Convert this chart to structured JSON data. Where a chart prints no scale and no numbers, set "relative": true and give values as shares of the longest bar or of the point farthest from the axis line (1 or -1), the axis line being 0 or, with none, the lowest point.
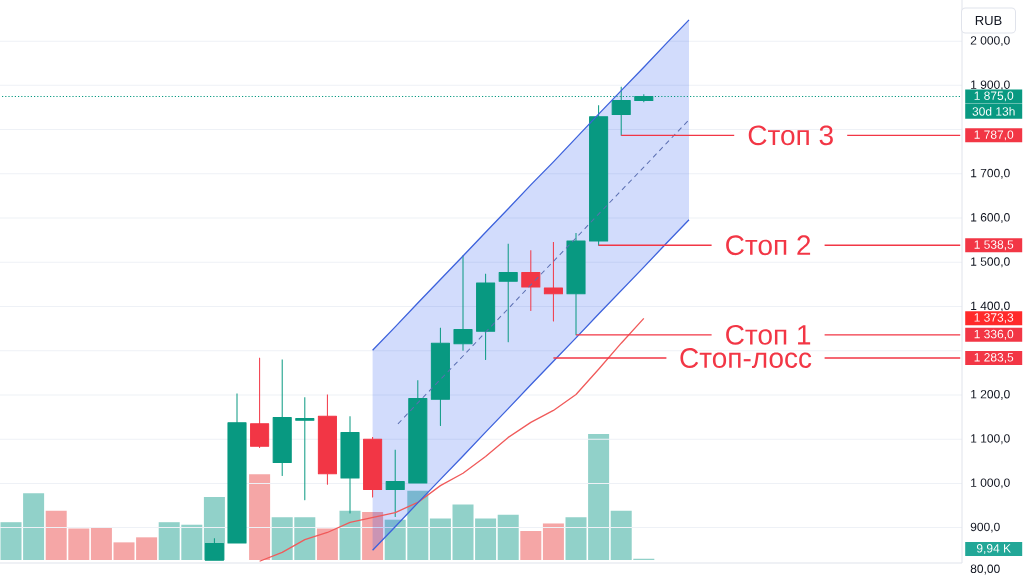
{
  "chart_data": [
    {
      "type": "candlestick",
      "categories": [
        null,
        null,
        null,
        null,
        null,
        null,
        null,
        null,
        null,
        null,
        null,
        null,
        null,
        null,
        null,
        null,
        null,
        null,
        null,
        null,
        null,
        null,
        null,
        null,
        null,
        null,
        null,
        null,
        null,
        null,
        null,
        null,
        null,
        null,
        null,
        null,
        null,
        null,
        null,
        null,
        null,
        null,
        null
      ],
      "ohlc": [
        null,
        null,
        null,
        null,
        null,
        null,
        null,
        null,
        null,
        [
          826,
          876,
          826,
          864
        ],
        [
          865,
          1203,
          865,
          1137
        ],
        [
          1135,
          1284,
          1081,
          1084
        ],
        [
          1047,
          1280,
          1018,
          1149
        ],
        [
          1143,
          1195,
          963,
          1147
        ],
        [
          1152,
          1201,
          998,
          1022
        ],
        [
          1012,
          1152,
          933,
          1115
        ],
        [
          1100,
          1105,
          969,
          986
        ],
        [
          986,
          1076,
          925,
          1004
        ],
        [
          1001,
          1233,
          1001,
          1192
        ],
        [
          1190,
          1352,
          1131,
          1317
        ],
        [
          1316,
          1516,
          1301,
          1348
        ],
        [
          1344,
          1474,
          1280,
          1453
        ],
        [
          1457,
          1542,
          1320,
          1477
        ],
        [
          1477,
          1527,
          1391,
          1444
        ],
        [
          1442,
          1546,
          1367,
          1429
        ],
        [
          1429,
          1566,
          1336,
          1548
        ],
        [
          1548,
          1855,
          1538.5,
          1829
        ],
        [
          1834,
          1897,
          1787,
          1866
        ],
        [
          1866,
          1880,
          1863,
          1875
        ],
        null,
        null,
        null,
        null,
        null,
        null,
        null,
        null,
        null,
        null,
        null,
        null,
        null,
        null
      ],
      "colors": [
        null,
        null,
        null,
        null,
        null,
        null,
        null,
        null,
        null,
        "#089981",
        "#089981",
        "#f23645",
        "#089981",
        "#089981",
        "#f23645",
        "#089981",
        "#f23645",
        "#089981",
        "#089981",
        "#089981",
        "#089981",
        "#089981",
        "#089981",
        "#f23645",
        "#f23645",
        "#089981",
        "#089981",
        "#089981",
        "#089981",
        null,
        null,
        null,
        null,
        null,
        null,
        null,
        null,
        null,
        null,
        null,
        null,
        null,
        null
      ],
      "ylim": [
        820,
        2093
      ],
      "yticks": [
        {
          "value": 900,
          "label": "900,0"
        },
        {
          "value": 1000,
          "label": "1 000,0"
        },
        {
          "value": 1100,
          "label": "1 100,0"
        },
        {
          "value": 1200,
          "label": "1 200,0"
        },
        {
          "value": 1300,
          "label": null
        },
        {
          "value": 1400,
          "label": "1 400,0"
        },
        {
          "value": 1500,
          "label": "1 500,0"
        },
        {
          "value": 1600,
          "label": "1 600,0"
        },
        {
          "value": 1700,
          "label": "1 700,0"
        },
        {
          "value": 1800,
          "label": null
        },
        {
          "value": 1900,
          "label": "1 900,0"
        },
        {
          "value": 2000,
          "label": "2 000,0"
        }
      ],
      "grid": "y",
      "series": [
        {
          "type": "line",
          "color": "#f05a5a",
          "values": [
            null,
            null,
            null,
            null,
            null,
            null,
            null,
            null,
            null,
            null,
            null,
            824,
            844,
            873,
            889,
            912,
            923,
            934,
            957,
            995,
            1023,
            1061,
            1104,
            1138,
            1165,
            1201,
            1258,
            1317,
            1373,
            null,
            null,
            null,
            null,
            null,
            null,
            null,
            null,
            null,
            null,
            null,
            null,
            null,
            null
          ]
        },
        {
          "type": "line",
          "color": "#5b6fb2",
          "line_style": "dashed",
          "values": [
            null,
            null,
            null,
            null,
            null,
            null,
            null,
            null,
            null,
            null,
            null,
            null,
            null,
            null,
            null,
            null,
            null,
            1128,
            1182,
            1235,
            1288,
            1342,
            1395,
            1449,
            1502,
            1555,
            1609,
            1662,
            1715,
            1769,
            1822,
            null,
            null,
            null,
            null,
            null,
            null,
            null,
            null,
            null,
            null,
            null,
            null
          ],
          "lower": [
            null,
            null,
            null,
            null,
            null,
            null,
            null,
            null,
            null,
            null,
            null,
            null,
            null,
            null,
            null,
            null,
            849,
            902,
            956,
            1009,
            1062,
            1116,
            1169,
            1223,
            1276,
            1329,
            1383,
            1436,
            1489,
            1543,
            1596,
            null,
            null,
            null,
            null,
            null,
            null,
            null,
            null,
            null,
            null,
            null,
            null
          ],
          "upper": [
            null,
            null,
            null,
            null,
            null,
            null,
            null,
            null,
            null,
            null,
            null,
            null,
            null,
            null,
            null,
            null,
            1301,
            1354,
            1408,
            1461,
            1514,
            1568,
            1621,
            1675,
            1727,
            1781,
            1835,
            1888,
            1941,
            1995,
            2048,
            null,
            null,
            null,
            null,
            null,
            null,
            null,
            null,
            null,
            null,
            null,
            null
          ]
        },
        {
          "type": "line",
          "color": "#3d62dc",
          "values": [
            null,
            null,
            null,
            null,
            null,
            null,
            null,
            null,
            null,
            null,
            null,
            null,
            null,
            null,
            null,
            null,
            1301,
            1354,
            1408,
            1461,
            1514,
            1568,
            1621,
            1675,
            1727,
            1781,
            1835,
            1888,
            1941,
            1995,
            2048,
            null,
            null,
            null,
            null,
            null,
            null,
            null,
            null,
            null,
            null,
            null,
            null
          ]
        },
        {
          "type": "line",
          "color": "#3d62dc",
          "values": [
            null,
            null,
            null,
            null,
            null,
            null,
            null,
            null,
            null,
            null,
            null,
            null,
            null,
            null,
            null,
            null,
            849,
            902,
            956,
            1009,
            1062,
            1116,
            1169,
            1223,
            1276,
            1329,
            1383,
            1436,
            1489,
            1543,
            1596,
            null,
            null,
            null,
            null,
            null,
            null,
            null,
            null,
            null,
            null,
            null,
            null
          ]
        },
        {
          "type": "line",
          "name": "Стоп 3",
          "color": "#f23645",
          "values": [
            null,
            null,
            null,
            null,
            null,
            null,
            null,
            null,
            null,
            null,
            null,
            null,
            null,
            null,
            null,
            null,
            null,
            null,
            null,
            null,
            null,
            null,
            null,
            null,
            null,
            null,
            null,
            1787,
            1787,
            1787,
            1787,
            1787,
            1787,
            null,
            null,
            null,
            null,
            1787,
            1787,
            1787,
            1787,
            1787,
            1787
          ],
          "value_labels": [
            null,
            null,
            null,
            null,
            null,
            null,
            null,
            null,
            null,
            null,
            null,
            null,
            null,
            null,
            null,
            null,
            null,
            null,
            null,
            null,
            null,
            null,
            null,
            null,
            null,
            null,
            null,
            null,
            null,
            null,
            null,
            null,
            null,
            null,
            null,
            null,
            null,
            null,
            null,
            null,
            null,
            null,
            "1 787,0"
          ]
        },
        {
          "type": "line",
          "name": "Стоп 2",
          "color": "#f23645",
          "values": [
            null,
            null,
            null,
            null,
            null,
            null,
            null,
            null,
            null,
            null,
            null,
            null,
            null,
            null,
            null,
            null,
            null,
            null,
            null,
            null,
            null,
            null,
            null,
            null,
            null,
            null,
            1538.5,
            1538.5,
            1538.5,
            1538.5,
            1538.5,
            1538.5,
            null,
            null,
            null,
            null,
            1538.5,
            1538.5,
            1538.5,
            1538.5,
            1538.5,
            1538.5,
            1538.5
          ],
          "value_labels": [
            null,
            null,
            null,
            null,
            null,
            null,
            null,
            null,
            null,
            null,
            null,
            null,
            null,
            null,
            null,
            null,
            null,
            null,
            null,
            null,
            null,
            null,
            null,
            null,
            null,
            null,
            null,
            null,
            null,
            null,
            null,
            null,
            null,
            null,
            null,
            null,
            null,
            null,
            null,
            null,
            null,
            null,
            "1 538,5"
          ]
        },
        {
          "type": "line",
          "name": "Стоп 1",
          "color": "#f23645",
          "values": [
            null,
            null,
            null,
            null,
            null,
            null,
            null,
            null,
            null,
            null,
            null,
            null,
            null,
            null,
            null,
            null,
            null,
            null,
            null,
            null,
            null,
            null,
            null,
            null,
            null,
            1336,
            1336,
            1336,
            1336,
            1336,
            1336,
            1336,
            null,
            null,
            null,
            null,
            1336,
            1336,
            1336,
            1336,
            1336,
            1336,
            1336
          ],
          "value_labels": [
            null,
            null,
            null,
            null,
            null,
            null,
            null,
            null,
            null,
            null,
            null,
            null,
            null,
            null,
            null,
            null,
            null,
            null,
            null,
            null,
            null,
            null,
            null,
            null,
            null,
            null,
            null,
            null,
            null,
            null,
            null,
            null,
            null,
            null,
            null,
            null,
            null,
            null,
            null,
            null,
            null,
            null,
            "1 336,0"
          ]
        },
        {
          "type": "line",
          "name": "Стоп-лосс",
          "color": "#f23645",
          "values": [
            null,
            null,
            null,
            null,
            null,
            null,
            null,
            null,
            null,
            null,
            null,
            null,
            null,
            null,
            null,
            null,
            null,
            null,
            null,
            null,
            null,
            null,
            null,
            null,
            1283.5,
            1283.5,
            1283.5,
            1283.5,
            1283.5,
            1283.5,
            null,
            null,
            null,
            null,
            null,
            null,
            1283.5,
            1283.5,
            1283.5,
            1283.5,
            1283.5,
            1283.5,
            1283.5
          ],
          "value_labels": [
            null,
            null,
            null,
            null,
            null,
            null,
            null,
            null,
            null,
            null,
            null,
            null,
            null,
            null,
            null,
            null,
            null,
            null,
            null,
            null,
            null,
            null,
            null,
            null,
            null,
            null,
            null,
            null,
            null,
            null,
            null,
            null,
            null,
            null,
            null,
            null,
            null,
            null,
            null,
            null,
            null,
            null,
            "1 283,5"
          ]
        }
      ],
      "ref_lines": [
        {
          "axis": "y",
          "value": 1875,
          "label": "1 875,0",
          "color": "#089981",
          "line_style": "dotted"
        }
      ],
      "annotations": [
        "RUB",
        "30d 13h",
        "1 373,3"
      ]
    },
    {
      "type": "bar",
      "relative": true,
      "categories": [
        null,
        null,
        null,
        null,
        null,
        null,
        null,
        null,
        null,
        null,
        null,
        null,
        null,
        null,
        null,
        null,
        null,
        null,
        null,
        null,
        null,
        null,
        null,
        null,
        null,
        null,
        null,
        null,
        null,
        null,
        null,
        null,
        null,
        null,
        null,
        null,
        null,
        null,
        null,
        null,
        null,
        null,
        null
      ],
      "values": [
        0.3,
        0.53,
        0.39,
        0.25,
        0.26,
        0.14,
        0.18,
        0.3,
        0.28,
        0.5,
        null,
        0.68,
        0.34,
        0.34,
        0.25,
        0.39,
        0.38,
        0.32,
        0.55,
        0.33,
        0.44,
        0.33,
        0.36,
        0.23,
        0.29,
        0.34,
        1,
        0.39,
        0.01,
        null,
        null,
        null,
        null,
        null,
        null,
        null,
        null,
        null,
        null,
        null,
        null,
        null,
        null
      ],
      "colors": [
        "#91d1c9",
        "#91d1c9",
        "#f5a6a6",
        "#f5a6a6",
        "#f5a6a6",
        "#f5a6a6",
        "#f5a6a6",
        "#91d1c9",
        "#91d1c9",
        "#91d1c9",
        null,
        "#f5a6a6",
        "#91d1c9",
        "#91d1c9",
        "#f5a6a6",
        "#91d1c9",
        "#f5a6a6",
        "#91d1c9",
        "#91d1c9",
        "#91d1c9",
        "#91d1c9",
        "#91d1c9",
        "#91d1c9",
        "#f5a6a6",
        "#f5a6a6",
        "#91d1c9",
        "#91d1c9",
        "#91d1c9",
        "#91d1c9",
        null,
        null,
        null,
        null,
        null,
        null,
        null,
        null,
        null,
        null,
        null,
        null,
        null,
        null
      ],
      "annotations": [
        "9,94 K",
        "80,00"
      ]
    }
  ]
}
